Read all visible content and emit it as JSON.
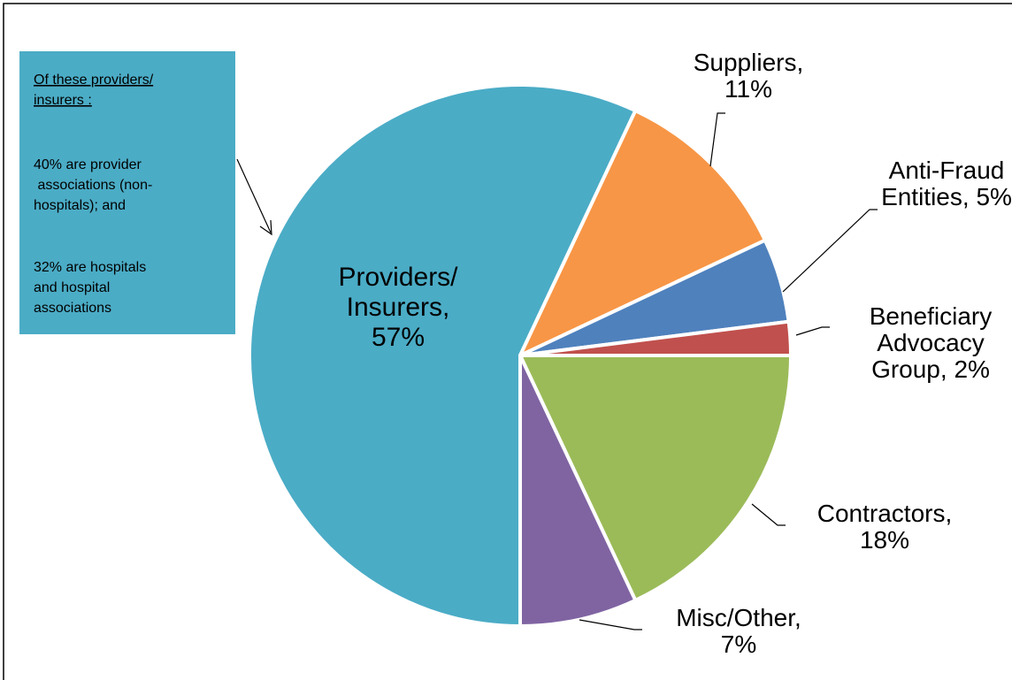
{
  "chart_data": {
    "type": "pie",
    "values": [
      57,
      11,
      5,
      2,
      18,
      7
    ],
    "value_labels": [
      "Providers/\nInsurers,\n57%",
      "Suppliers,\n11%",
      "Anti-Fraud\nEntities, 5%",
      "Beneficiary\nAdvocacy\nGroup, 2%",
      "Contractors,\n18%",
      "Misc/Other,\n7%"
    ],
    "colors": [
      "#4bacc6",
      "#f79646",
      "#4f81bd",
      "#c0504d",
      "#9bbb59",
      "#8064a2"
    ],
    "start_angle": 180,
    "annotation": {
      "heading": "Of these providers/\ninsurers :",
      "paragraphs": [
        "40%  are provider\n associations (non-\nhospitals); and",
        "32%  are hospitals\nand hospital\nassociations"
      ]
    }
  }
}
